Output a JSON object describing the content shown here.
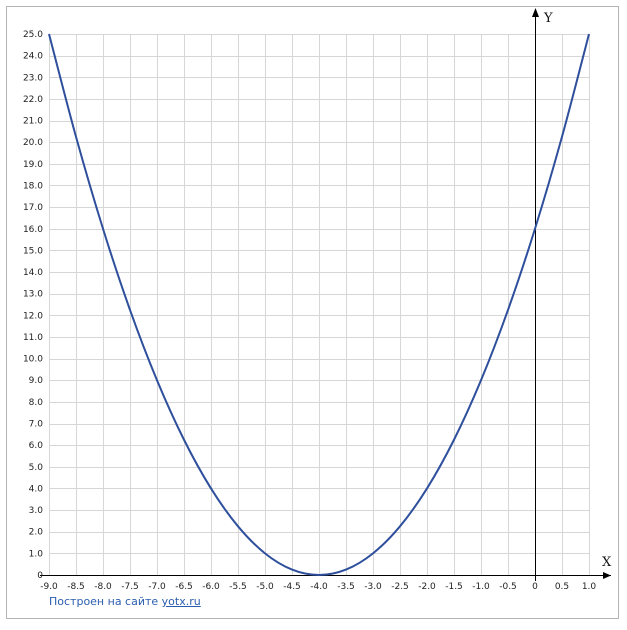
{
  "chart_data": {
    "type": "line",
    "title": "",
    "xlabel": "X",
    "ylabel": "Y",
    "xlim": [
      -9.0,
      1.0
    ],
    "ylim": [
      0,
      25.0
    ],
    "grid": true,
    "x_ticks": [
      "-9.0",
      "-8.5",
      "-8.0",
      "-7.5",
      "-7.0",
      "-6.5",
      "-6.0",
      "-5.5",
      "-5.0",
      "-4.5",
      "-4.0",
      "-3.5",
      "-3.0",
      "-2.5",
      "-2.0",
      "-1.5",
      "-1.0",
      "-0.5",
      "0",
      "0.5",
      "1.0"
    ],
    "y_ticks": [
      "0",
      "1.0",
      "2.0",
      "3.0",
      "4.0",
      "5.0",
      "6.0",
      "7.0",
      "8.0",
      "9.0",
      "10.0",
      "11.0",
      "12.0",
      "13.0",
      "14.0",
      "15.0",
      "16.0",
      "17.0",
      "18.0",
      "19.0",
      "20.0",
      "21.0",
      "22.0",
      "23.0",
      "24.0",
      "25.0"
    ],
    "series": [
      {
        "color": "#2e4f9c",
        "x": [
          -9.0,
          -8.5,
          -8.0,
          -7.5,
          -7.0,
          -6.5,
          -6.0,
          -5.5,
          -5.0,
          -4.5,
          -4.0,
          -3.5,
          -3.0,
          -2.5,
          -2.0,
          -1.5,
          -1.0,
          -0.5,
          0,
          0.5,
          1.0
        ],
        "y": [
          25.0,
          20.25,
          16.0,
          12.25,
          9.0,
          6.25,
          4.0,
          2.25,
          1.0,
          0.25,
          0,
          0.25,
          1.0,
          2.25,
          4.0,
          6.25,
          9.0,
          12.25,
          16.0,
          20.25,
          25.0
        ]
      }
    ]
  },
  "credit": {
    "prefix": "Построен на сайте",
    "link": "yotx.ru"
  }
}
